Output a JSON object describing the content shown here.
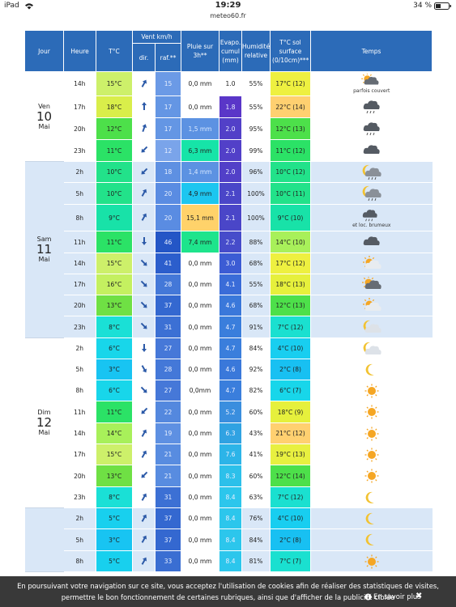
{
  "status": {
    "device": "iPad",
    "time": "19:29",
    "site": "meteo60.fr",
    "battery": "34 %"
  },
  "table": {
    "header": {
      "day": "Jour",
      "hour": "Heure",
      "temp": "T°C",
      "wind": "Vent km/h",
      "dir": "dir.",
      "gust": "raf.**",
      "rain": "Pluie sur 3h**",
      "evap": "Evapo. cumul (mm)",
      "humidity": "Humidité relative",
      "soil": "T°C sol surface (0/10cm)***",
      "sky": "Temps"
    },
    "groups": [
      {
        "day": "Ven",
        "date": "10",
        "month": "Mai",
        "rows": [
          {
            "hour": "14h",
            "temp": "15°C",
            "gust": "15",
            "rain": "0,0 mm",
            "evap": "1.0",
            "humidity": "55%",
            "soil": "17°C (12)",
            "note": "parfois couvert"
          },
          {
            "hour": "17h",
            "temp": "18°C",
            "gust": "17",
            "rain": "0,0 mm",
            "evap": "1.8",
            "humidity": "55%",
            "soil": "22°C (14)"
          },
          {
            "hour": "20h",
            "temp": "12°C",
            "gust": "17",
            "rain": "1,5 mm",
            "evap": "2.0",
            "humidity": "95%",
            "soil": "12°C (13)"
          },
          {
            "hour": "23h",
            "temp": "11°C",
            "gust": "12",
            "rain": "6,3 mm",
            "evap": "2.0",
            "humidity": "99%",
            "soil": "11°C (12)"
          }
        ]
      },
      {
        "day": "Sam",
        "date": "11",
        "month": "Mai",
        "rows": [
          {
            "hour": "2h",
            "temp": "10°C",
            "gust": "18",
            "rain": "1,4 mm",
            "evap": "2.0",
            "humidity": "96%",
            "soil": "10°C (12)"
          },
          {
            "hour": "5h",
            "temp": "10°C",
            "gust": "20",
            "rain": "4,9 mm",
            "evap": "2.1",
            "humidity": "100%",
            "soil": "10°C (11)"
          },
          {
            "hour": "8h",
            "temp": "9°C",
            "gust": "20",
            "rain": "15,1 mm",
            "evap": "2.1",
            "humidity": "100%",
            "soil": "9°C (10)",
            "note": "et loc. brumeux"
          },
          {
            "hour": "11h",
            "temp": "11°C",
            "gust": "46",
            "rain": "7,4 mm",
            "evap": "2.2",
            "humidity": "88%",
            "soil": "14°C (10)"
          },
          {
            "hour": "14h",
            "temp": "15°C",
            "gust": "41",
            "rain": "0,0 mm",
            "evap": "3.0",
            "humidity": "68%",
            "soil": "17°C (12)"
          },
          {
            "hour": "17h",
            "temp": "16°C",
            "gust": "28",
            "rain": "0,0 mm",
            "evap": "4.1",
            "humidity": "55%",
            "soil": "18°C (13)"
          },
          {
            "hour": "20h",
            "temp": "13°C",
            "gust": "37",
            "rain": "0,0 mm",
            "evap": "4.6",
            "humidity": "68%",
            "soil": "12°C (13)"
          },
          {
            "hour": "23h",
            "temp": "8°C",
            "gust": "31",
            "rain": "0,0 mm",
            "evap": "4.7",
            "humidity": "91%",
            "soil": "7°C (12)"
          }
        ]
      },
      {
        "day": "Dim",
        "date": "12",
        "month": "Mai",
        "rows": [
          {
            "hour": "2h",
            "temp": "6°C",
            "gust": "27",
            "rain": "0,0 mm",
            "evap": "4.7",
            "humidity": "84%",
            "soil": "4°C (10)"
          },
          {
            "hour": "5h",
            "temp": "3°C",
            "gust": "28",
            "rain": "0,0 mm",
            "evap": "4.6",
            "humidity": "92%",
            "soil": "2°C (8)"
          },
          {
            "hour": "8h",
            "temp": "6°C",
            "gust": "27",
            "rain": "0,0mm",
            "evap": "4.7",
            "humidity": "82%",
            "soil": "6°C (7)"
          },
          {
            "hour": "11h",
            "temp": "11°C",
            "gust": "22",
            "rain": "0,0 mm",
            "evap": "5.2",
            "humidity": "60%",
            "soil": "18°C (9)"
          },
          {
            "hour": "14h",
            "temp": "14°C",
            "gust": "19",
            "rain": "0,0 mm",
            "evap": "6.3",
            "humidity": "43%",
            "soil": "21°C (12)"
          },
          {
            "hour": "17h",
            "temp": "15°C",
            "gust": "21",
            "rain": "0,0 mm",
            "evap": "7.6",
            "humidity": "41%",
            "soil": "19°C (13)"
          },
          {
            "hour": "20h",
            "temp": "13°C",
            "gust": "21",
            "rain": "0,0 mm",
            "evap": "8.3",
            "humidity": "60%",
            "soil": "12°C (14)"
          },
          {
            "hour": "23h",
            "temp": "8°C",
            "gust": "31",
            "rain": "0,0 mm",
            "evap": "8.4",
            "humidity": "63%",
            "soil": "7°C (12)"
          }
        ]
      },
      {
        "rows": [
          {
            "hour": "2h",
            "temp": "5°C",
            "gust": "37",
            "rain": "0,0 mm",
            "evap": "8.4",
            "humidity": "76%",
            "soil": "4°C (10)"
          },
          {
            "hour": "5h",
            "temp": "3°C",
            "gust": "37",
            "rain": "0,0 mm",
            "evap": "8.4",
            "humidity": "84%",
            "soil": "2°C (8)"
          },
          {
            "hour": "8h",
            "temp": "5°C",
            "gust": "33",
            "rain": "0,0 mm",
            "evap": "8.4",
            "humidity": "81%",
            "soil": "7°C (7)"
          }
        ]
      }
    ]
  },
  "cookie": {
    "text": "En poursuivant votre navigation sur ce site, vous acceptez l'utilisation de cookies afin de réaliser des statistiques de visites, permettre le bon fonctionnement de certaines rubriques, ainsi que d'afficher de la publicité ciblée",
    "link": "En savoir plus"
  }
}
